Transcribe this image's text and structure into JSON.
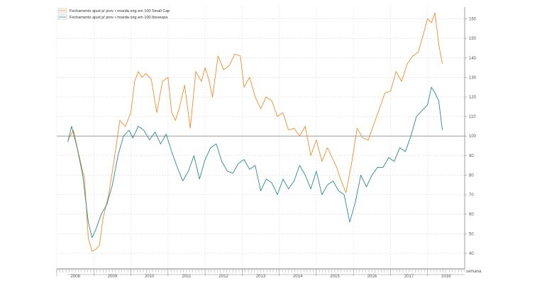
{
  "chart_data": {
    "type": "line",
    "title": "",
    "xlabel": "semana",
    "ylabel": "",
    "ylim": [
      32,
      166
    ],
    "xlim": [
      2008.0,
      2019.0
    ],
    "yticks": [
      40,
      50,
      60,
      70,
      80,
      90,
      100,
      110,
      120,
      130,
      140,
      150,
      160
    ],
    "year_labels": [
      "2008",
      "2009",
      "2010",
      "2011",
      "2012",
      "2013",
      "2014",
      "2015",
      "2016",
      "2017",
      "2018"
    ],
    "reference_line": 100,
    "grid": true,
    "legend_position": "top-left",
    "series": [
      {
        "name": "Fechamento  ajust p/ prov  • moeda orig em 100  Small Cap",
        "color": "#f58a2e",
        "x": [
          2008.3,
          2008.45,
          2008.6,
          2008.75,
          2008.85,
          2008.95,
          2009.05,
          2009.15,
          2009.25,
          2009.4,
          2009.55,
          2009.7,
          2009.85,
          2010.0,
          2010.1,
          2010.2,
          2010.3,
          2010.4,
          2010.55,
          2010.7,
          2010.85,
          2011.0,
          2011.1,
          2011.2,
          2011.3,
          2011.45,
          2011.6,
          2011.75,
          2011.9,
          2012.0,
          2012.1,
          2012.2,
          2012.35,
          2012.5,
          2012.65,
          2012.8,
          2012.95,
          2013.05,
          2013.2,
          2013.35,
          2013.5,
          2013.65,
          2013.8,
          2013.95,
          2014.1,
          2014.25,
          2014.4,
          2014.55,
          2014.7,
          2014.85,
          2015.0,
          2015.15,
          2015.3,
          2015.45,
          2015.55,
          2015.65,
          2015.8,
          2015.95,
          2016.1,
          2016.25,
          2016.4,
          2016.55,
          2016.7,
          2016.85,
          2017.0,
          2017.15,
          2017.3,
          2017.45,
          2017.6,
          2017.75,
          2017.9,
          2018.0,
          2018.1,
          2018.2,
          2018.3,
          2018.4
        ],
        "values": [
          98,
          103,
          90,
          78,
          48,
          41,
          42,
          44,
          58,
          70,
          88,
          108,
          105,
          112,
          128,
          133,
          130,
          132,
          129,
          112,
          128,
          130,
          112,
          108,
          114,
          126,
          104,
          133,
          128,
          135,
          129,
          120,
          141,
          134,
          136,
          142,
          141,
          125,
          130,
          120,
          114,
          120,
          118,
          110,
          112,
          103,
          104,
          100,
          105,
          90,
          98,
          87,
          94,
          88,
          84,
          78,
          71,
          86,
          104,
          99,
          98,
          106,
          114,
          122,
          123,
          133,
          128,
          137,
          141,
          143,
          153,
          160,
          158,
          163,
          147,
          137
        ]
      },
      {
        "name": "Fechamento  ajust p/ prov  • moeda orig em 100  Ibovespa",
        "color": "#2a8a8a",
        "x": [
          2008.3,
          2008.4,
          2008.55,
          2008.7,
          2008.85,
          2008.95,
          2009.05,
          2009.2,
          2009.35,
          2009.5,
          2009.65,
          2009.8,
          2009.95,
          2010.05,
          2010.2,
          2010.35,
          2010.5,
          2010.65,
          2010.8,
          2010.95,
          2011.1,
          2011.25,
          2011.4,
          2011.55,
          2011.7,
          2011.85,
          2012.0,
          2012.15,
          2012.3,
          2012.45,
          2012.6,
          2012.75,
          2012.9,
          2013.05,
          2013.2,
          2013.35,
          2013.5,
          2013.65,
          2013.8,
          2013.95,
          2014.1,
          2014.25,
          2014.4,
          2014.55,
          2014.7,
          2014.85,
          2015.0,
          2015.15,
          2015.3,
          2015.45,
          2015.6,
          2015.75,
          2015.9,
          2016.05,
          2016.2,
          2016.35,
          2016.5,
          2016.65,
          2016.8,
          2016.95,
          2017.1,
          2017.25,
          2017.4,
          2017.55,
          2017.7,
          2017.85,
          2018.0,
          2018.1,
          2018.2,
          2018.3,
          2018.4
        ],
        "values": [
          97,
          105,
          94,
          80,
          56,
          48,
          52,
          60,
          65,
          75,
          90,
          100,
          103,
          99,
          105,
          103,
          98,
          102,
          96,
          101,
          92,
          84,
          77,
          82,
          90,
          78,
          88,
          94,
          96,
          87,
          82,
          81,
          86,
          88,
          83,
          85,
          72,
          78,
          76,
          70,
          78,
          73,
          77,
          85,
          80,
          73,
          82,
          70,
          75,
          77,
          72,
          70,
          56,
          66,
          80,
          74,
          80,
          84,
          84,
          89,
          87,
          94,
          92,
          100,
          110,
          113,
          116,
          125,
          122,
          118,
          103
        ]
      }
    ]
  }
}
